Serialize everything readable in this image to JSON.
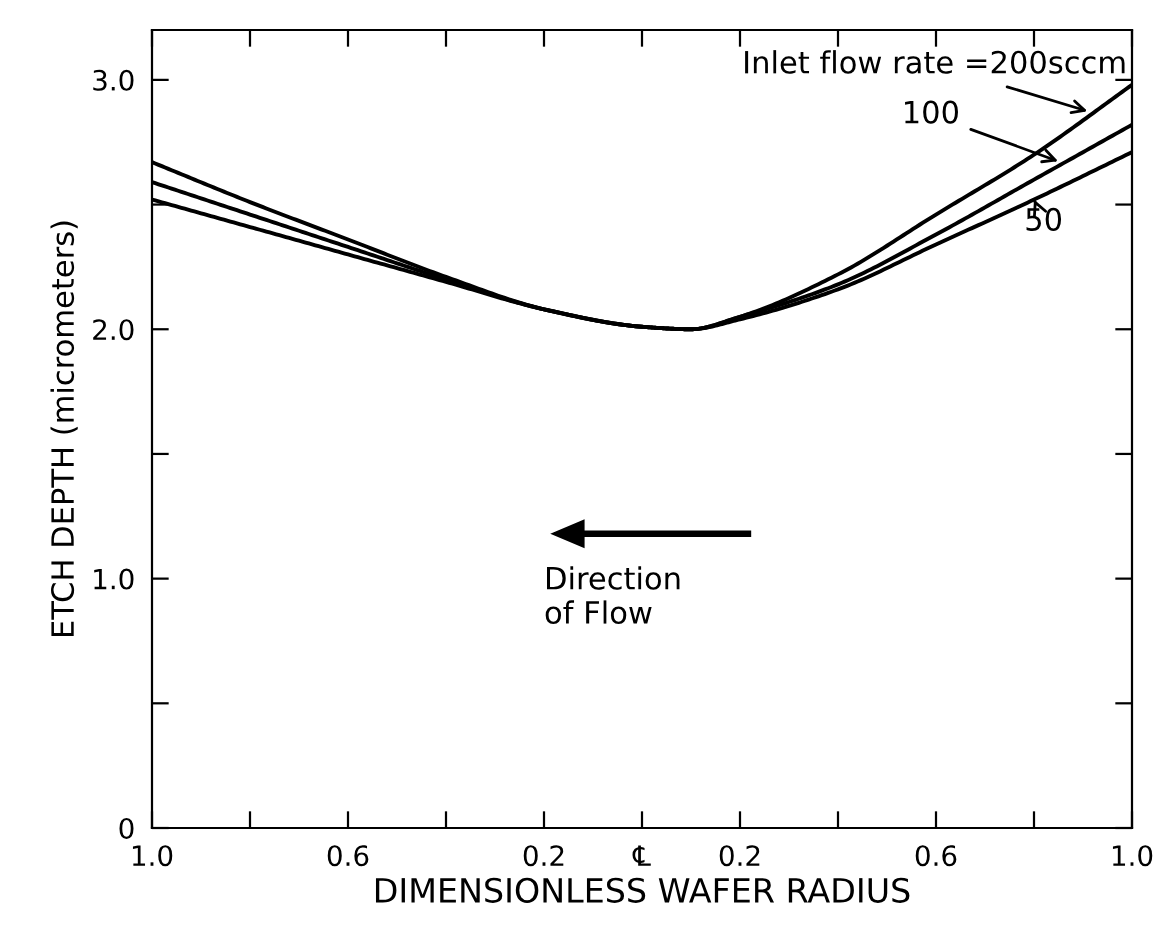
{
  "chart_data": {
    "type": "line",
    "xlabel": "DIMENSIONLESS WAFER RADIUS",
    "ylabel": "ETCH DEPTH (micrometers)",
    "x": [
      -1,
      -0.8,
      -0.6,
      -0.4,
      -0.2,
      0,
      0.1,
      0.2,
      0.4,
      0.6,
      0.8,
      1
    ],
    "series": [
      {
        "name": "Inlet flow rate =200sccm",
        "color": "#000000",
        "values": [
          2.67,
          2.51,
          2.36,
          2.21,
          2.08,
          2.01,
          2.0,
          2.05,
          2.22,
          2.46,
          2.7,
          2.98
        ]
      },
      {
        "name": "100",
        "color": "#000000",
        "values": [
          2.59,
          2.46,
          2.33,
          2.2,
          2.08,
          2.01,
          2.0,
          2.05,
          2.18,
          2.38,
          2.6,
          2.82
        ]
      },
      {
        "name": "50",
        "color": "#000000",
        "values": [
          2.52,
          2.41,
          2.3,
          2.19,
          2.08,
          2.01,
          2.0,
          2.04,
          2.16,
          2.34,
          2.52,
          2.71
        ]
      }
    ],
    "annotations": [
      "Direction\nof Flow"
    ],
    "xlim": [
      -1,
      1
    ],
    "xticks": [
      {
        "value": -1,
        "label": "1.0"
      },
      {
        "value": -0.8,
        "label": null
      },
      {
        "value": -0.6,
        "label": "0.6"
      },
      {
        "value": -0.4,
        "label": null
      },
      {
        "value": -0.2,
        "label": "0.2"
      },
      {
        "value": 0,
        "label": "℄"
      },
      {
        "value": 0.2,
        "label": "0.2"
      },
      {
        "value": 0.4,
        "label": null
      },
      {
        "value": 0.6,
        "label": "0.6"
      },
      {
        "value": 0.8,
        "label": null
      },
      {
        "value": 1,
        "label": "1.0"
      }
    ],
    "ylim": [
      0,
      3.2
    ],
    "yticks": [
      0,
      {
        "value": 0.5,
        "label": null
      },
      {
        "value": 1,
        "label": "1.0"
      },
      {
        "value": 1.5,
        "label": null
      },
      {
        "value": 2,
        "label": "2.0"
      },
      {
        "value": 2.5,
        "label": null
      },
      {
        "value": 3,
        "label": "3.0"
      }
    ],
    "grid": false,
    "legend": "top right",
    "marker": "none",
    "line_style": "solid"
  }
}
